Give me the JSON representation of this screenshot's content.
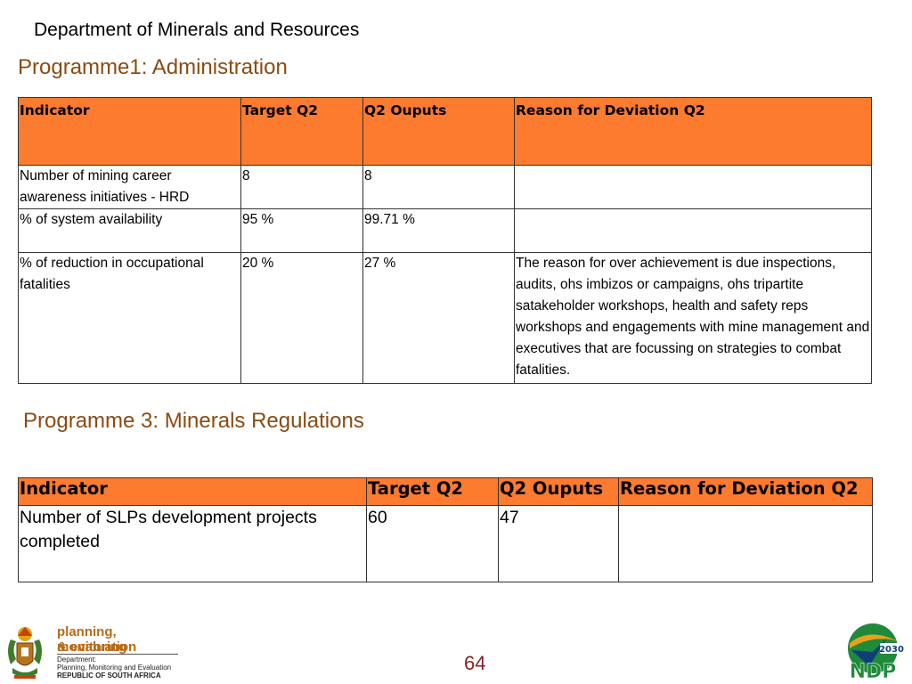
{
  "header": {
    "department": "Department of Minerals and Resources"
  },
  "programme1": {
    "title": "Programme1: Administration",
    "columns": [
      "Indicator",
      "Target Q2",
      "Q2 Ouputs",
      "Reason for Deviation Q2"
    ],
    "rows": [
      {
        "indicator": "Number of mining career awareness initiatives - HRD",
        "target": "8",
        "output": "8",
        "reason": ""
      },
      {
        "indicator": "% of system availability",
        "target": "95 %",
        "output": "99.71 %",
        "reason": ""
      },
      {
        "indicator": "% of reduction in occupational fatalities",
        "target": "20 %",
        "output": "27 %",
        "reason": "The reason for over achievement is due inspections, audits, ohs imbizos or campaigns, ohs tripartite satakeholder workshops, health and safety reps workshops and engagements with mine management and executives that are focussing on strategies to combat fatalities."
      }
    ]
  },
  "programme3": {
    "title": "Programme 3: Minerals Regulations",
    "columns": [
      "Indicator",
      "Target Q2",
      "Q2 Ouputs",
      "Reason for Deviation Q2"
    ],
    "rows": [
      {
        "indicator": "Number of SLPs development projects completed",
        "target": "60",
        "output": "47",
        "reason": ""
      }
    ]
  },
  "footer": {
    "page_number": "64",
    "dpme_logo": {
      "line1": "planning, monitoring",
      "line2": "& evaluation",
      "dept_line1": "Department:",
      "dept_line2": "Planning, Monitoring and Evaluation",
      "dept_line3": "REPUBLIC OF SOUTH AFRICA",
      "icon": "coat-of-arms-icon"
    },
    "ndp_logo": {
      "text": "NDP",
      "year": "2030",
      "icon": "ndp-logo-icon"
    }
  },
  "colors": {
    "header_fill": "#fd7b2e",
    "title_brown": "#8a4b12",
    "page_number": "#8a1f1f"
  }
}
